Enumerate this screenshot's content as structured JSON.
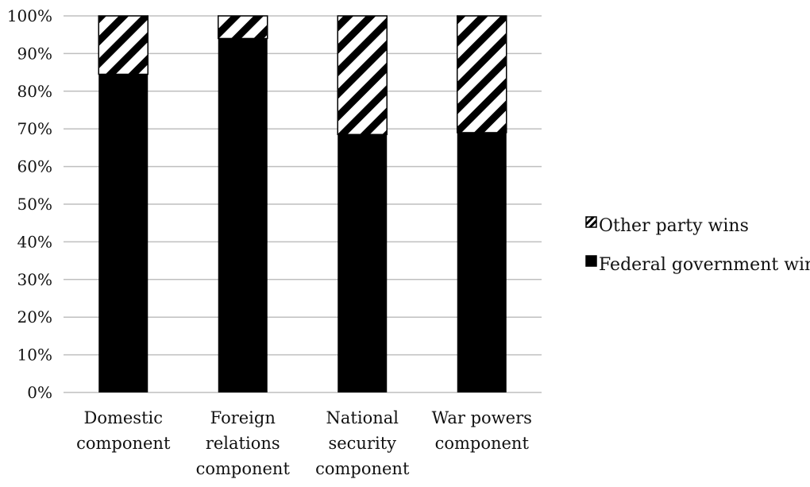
{
  "chart_data": {
    "type": "bar",
    "stacked": true,
    "percent_stacked": true,
    "title": "",
    "xlabel": "",
    "ylabel": "",
    "categories": [
      [
        "Domestic",
        "component"
      ],
      [
        "Foreign",
        "relations",
        "component"
      ],
      [
        "National",
        "security",
        "component"
      ],
      [
        "War powers",
        "component"
      ]
    ],
    "series": [
      {
        "name": "Federal government wins",
        "values": [
          84.5,
          94,
          68.5,
          69
        ],
        "fill": "solid",
        "color": "#000000"
      },
      {
        "name": "Other party wins",
        "values": [
          15.5,
          6,
          31.5,
          31
        ],
        "fill": "diagonal-hatch",
        "color": "#000000"
      }
    ],
    "ylim": [
      0,
      100
    ],
    "yticks": [
      0,
      10,
      20,
      30,
      40,
      50,
      60,
      70,
      80,
      90,
      100
    ],
    "ytick_labels": [
      "0%",
      "10%",
      "20%",
      "30%",
      "40%",
      "50%",
      "60%",
      "70%",
      "80%",
      "90%",
      "100%"
    ],
    "grid": true,
    "legend_position": "right",
    "legend_order": [
      "Other party wins",
      "Federal government wins"
    ],
    "colors": {
      "bar": "#000000",
      "grid": "#bfbfbf",
      "background": "#ffffff"
    }
  }
}
